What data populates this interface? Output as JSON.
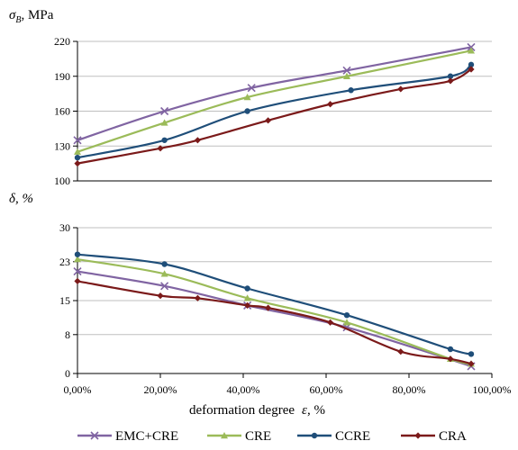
{
  "chart_data": [
    {
      "type": "line",
      "ylabel": "σB, MPa",
      "ylabel_symbol": "σ",
      "ylabel_sub": "B",
      "ylabel_unit": ", MPa",
      "ylim": [
        100,
        220
      ],
      "yticks": [
        100,
        130,
        160,
        190,
        220
      ],
      "xlim": [
        0,
        100
      ],
      "grid": "horizontal",
      "series": [
        {
          "name": "EMC+CRE",
          "color": "#8064A2",
          "marker": "x",
          "x": [
            0,
            21,
            42,
            65,
            95
          ],
          "y": [
            135,
            160,
            180,
            195,
            215
          ]
        },
        {
          "name": "CRE",
          "color": "#9BBB59",
          "marker": "triangle",
          "x": [
            0,
            21,
            41,
            65,
            95
          ],
          "y": [
            125,
            150,
            172,
            190,
            212
          ]
        },
        {
          "name": "CCRE",
          "color": "#1F4E79",
          "marker": "circle",
          "x": [
            0,
            21,
            41,
            66,
            90,
            95
          ],
          "y": [
            120,
            135,
            160,
            178,
            190,
            200
          ]
        },
        {
          "name": "CRA",
          "color": "#7B1A1A",
          "marker": "diamond",
          "x": [
            0,
            20,
            29,
            46,
            61,
            78,
            90,
            95
          ],
          "y": [
            115,
            128,
            135,
            152,
            166,
            179,
            186,
            196
          ]
        }
      ]
    },
    {
      "type": "line",
      "ylabel": "δ, %",
      "ylim": [
        0,
        30
      ],
      "yticks": [
        0,
        8,
        15,
        23,
        30
      ],
      "xlim": [
        0,
        100
      ],
      "xticks": [
        "0,00%",
        "20,00%",
        "40,00%",
        "60,00%",
        "80,00%",
        "100,00%"
      ],
      "xlabel": "deformation degree ε, %",
      "xlabel_main": "deformation degree",
      "xlabel_symbol": "ε",
      "xlabel_unit": ", %",
      "grid": "horizontal",
      "series": [
        {
          "name": "EMC+CRE",
          "color": "#8064A2",
          "marker": "x",
          "x": [
            0,
            21,
            41,
            65,
            95
          ],
          "y": [
            21,
            18,
            14,
            9.5,
            1.5
          ]
        },
        {
          "name": "CRE",
          "color": "#9BBB59",
          "marker": "triangle",
          "x": [
            0,
            21,
            41,
            65,
            90,
            95
          ],
          "y": [
            23.5,
            20.5,
            15.5,
            10.5,
            3,
            2
          ]
        },
        {
          "name": "CCRE",
          "color": "#1F4E79",
          "marker": "circle",
          "x": [
            0,
            21,
            41,
            65,
            90,
            95
          ],
          "y": [
            24.5,
            22.5,
            17.5,
            12,
            5,
            4
          ]
        },
        {
          "name": "CRA",
          "color": "#7B1A1A",
          "marker": "diamond",
          "x": [
            0,
            20,
            29,
            41,
            46,
            61,
            78,
            90,
            95
          ],
          "y": [
            19,
            16,
            15.5,
            14,
            13.5,
            10.5,
            4.5,
            3,
            2
          ]
        }
      ]
    }
  ],
  "legend": {
    "placement": "bottom",
    "items": [
      "EMC+CRE",
      "CRE",
      "CCRE",
      "CRA"
    ]
  }
}
